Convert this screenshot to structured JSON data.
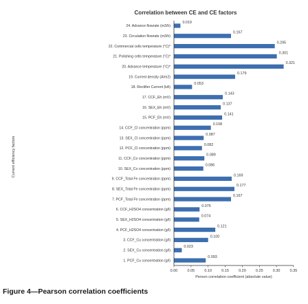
{
  "chart_data": {
    "type": "bar",
    "orientation": "horizontal",
    "title": "Correlation between CE and CE factors",
    "xlabel": "Person correlation coefficient (absolute value)",
    "ylabel": "Current efficiency factors",
    "xlim": [
      0,
      0.35
    ],
    "xticks": [
      "0.00",
      "0.05",
      "0.10",
      "0.15",
      "0.20",
      "0.25",
      "0.30",
      "0.35"
    ],
    "grid": false,
    "legend": "none",
    "bar_color": "#3d6fb0",
    "categories": [
      "24. Advance flowrate (m3/h)",
      "23. Circulation flowrate (m3/h)",
      "22. Commercial cells temperature (°C)*",
      "21. Polishing cells temperature (°C)*",
      "20. Advance temperature (°C)*",
      "19. Current density (A/m2)",
      "18. Rectifier Current (kA)",
      "17. CCF_Eh (mV)",
      "16. SEX_Eh (mV)",
      "15. PCF_Eh (mV)",
      "14. CCF_Cl concentration (ppm)",
      "13. SEX_Cl concentration (ppm)",
      "12. PCF_Cl concentration (ppm)",
      "11. CCF_Co concentration (ppm)",
      "10. SEX_Co concentration (ppm)",
      "9. CCF_Total Fe concentration (ppm)",
      "8. SEX_Total Fe concentration (ppm)",
      "7. PCF_Total Fe concentration (ppm)",
      "6. CCF_H2SO4 concentration (g/l)",
      "5. SEX_H2SO4 concentration (g/l)",
      "4. PCF_H2SO4 concentration (g/l)",
      "3. CCF_Cu concentration (g/l)",
      "2. SEX_Cu concentration (g/l)",
      "1. PCF_Cu concentration (g/l)"
    ],
    "values": [
      0.019,
      0.167,
      0.295,
      0.301,
      0.321,
      0.179,
      0.053,
      0.143,
      0.137,
      0.141,
      0.108,
      0.087,
      0.082,
      0.089,
      0.086,
      0.169,
      0.177,
      0.167,
      0.075,
      0.074,
      0.121,
      0.1,
      0.023,
      0.093
    ],
    "data_labels": [
      "0.019",
      "0.167",
      "0.295",
      "0.301",
      "0.321",
      "0.179",
      "0.053",
      "0.143",
      "0.137",
      "0.141",
      "0.108",
      "0.087",
      "0.082",
      "0.089",
      "0.086",
      "0.169",
      "0.177",
      "0.167",
      "0.075",
      "0.074",
      "0.121",
      "0.100",
      "0.023",
      "0.093"
    ]
  },
  "caption": "Figure 4—Pearson correlation coefficients"
}
